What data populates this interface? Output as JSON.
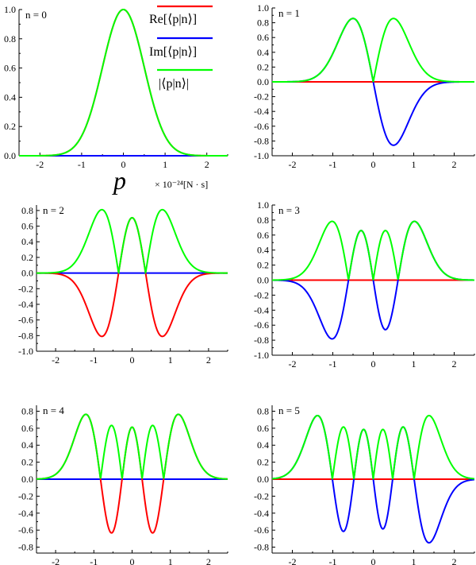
{
  "colors": {
    "re": "#ff0000",
    "im": "#0000ff",
    "abs": "#00ff00",
    "axis": "#000000"
  },
  "legend": {
    "entries": [
      {
        "label": "Re[⟨p|n⟩]",
        "color": "#ff0000"
      },
      {
        "label": "Im[⟨p|n⟩]",
        "color": "#0000ff"
      },
      {
        "label": "|⟨p|n⟩|",
        "color": "#00ff00"
      }
    ]
  },
  "xaxis": {
    "label": "p",
    "unit": "× 10⁻²⁴[N · s]"
  },
  "chart_data": [
    {
      "type": "line",
      "panel_label": "n = 0",
      "n": 0,
      "real_part": "re",
      "xlim": [
        -2.5,
        2.5
      ],
      "ylim": [
        0,
        1.0
      ],
      "x_ticks": [
        "-2",
        "-1",
        "0",
        "1",
        "2"
      ],
      "y_ticks": [
        "0.0",
        "0.2",
        "0.4",
        "0.6",
        "0.8",
        "1.0"
      ],
      "series": [
        {
          "name": "Re[⟨p|n⟩]",
          "color": "#ff0000"
        },
        {
          "name": "Im[⟨p|n⟩]",
          "color": "#0000ff"
        },
        {
          "name": "|⟨p|n⟩|",
          "color": "#00ff00"
        }
      ]
    },
    {
      "type": "line",
      "panel_label": "n = 1",
      "n": 1,
      "real_part": "im",
      "xlim": [
        -2.5,
        2.5
      ],
      "ylim": [
        -1.0,
        1.0
      ],
      "x_ticks": [
        "-2",
        "-1",
        "0",
        "1",
        "2"
      ],
      "y_ticks": [
        "-1.0",
        "-0.8",
        "-0.6",
        "-0.4",
        "-0.2",
        "0.0",
        "0.2",
        "0.4",
        "0.6",
        "0.8",
        "1.0"
      ],
      "series": [
        {
          "name": "Re[⟨p|n⟩]",
          "color": "#ff0000"
        },
        {
          "name": "Im[⟨p|n⟩]",
          "color": "#0000ff"
        },
        {
          "name": "|⟨p|n⟩|",
          "color": "#00ff00"
        }
      ]
    },
    {
      "type": "line",
      "panel_label": "n = 2",
      "n": 2,
      "real_part": "re",
      "xlim": [
        -2.5,
        2.5
      ],
      "ylim": [
        -1.0,
        0.87
      ],
      "x_ticks": [
        "-2",
        "-1",
        "0",
        "1",
        "2"
      ],
      "y_ticks": [
        "-1.0",
        "-0.8",
        "-0.6",
        "-0.4",
        "-0.2",
        "0.0",
        "0.2",
        "0.4",
        "0.6",
        "0.8"
      ],
      "series": [
        {
          "name": "Re[⟨p|n⟩]",
          "color": "#ff0000"
        },
        {
          "name": "Im[⟨p|n⟩]",
          "color": "#0000ff"
        },
        {
          "name": "|⟨p|n⟩|",
          "color": "#00ff00"
        }
      ]
    },
    {
      "type": "line",
      "panel_label": "n = 3",
      "n": 3,
      "real_part": "im",
      "xlim": [
        -2.5,
        2.5
      ],
      "ylim": [
        -1.0,
        1.0
      ],
      "x_ticks": [
        "-2",
        "-1",
        "0",
        "1",
        "2"
      ],
      "y_ticks": [
        "-1.0",
        "-0.8",
        "-0.6",
        "-0.4",
        "-0.2",
        "0.0",
        "0.2",
        "0.4",
        "0.6",
        "0.8",
        "1.0"
      ],
      "series": [
        {
          "name": "Re[⟨p|n⟩]",
          "color": "#ff0000"
        },
        {
          "name": "Im[⟨p|n⟩]",
          "color": "#0000ff"
        },
        {
          "name": "|⟨p|n⟩|",
          "color": "#00ff00"
        }
      ]
    },
    {
      "type": "line",
      "panel_label": "n = 4",
      "n": 4,
      "real_part": "re",
      "xlim": [
        -2.5,
        2.5
      ],
      "ylim": [
        -0.87,
        0.87
      ],
      "x_ticks": [
        "-2",
        "-1",
        "0",
        "1",
        "2"
      ],
      "y_ticks": [
        "-0.8",
        "-0.6",
        "-0.4",
        "-0.2",
        "0.0",
        "0.2",
        "0.4",
        "0.6",
        "0.8"
      ],
      "series": [
        {
          "name": "Re[⟨p|n⟩]",
          "color": "#ff0000"
        },
        {
          "name": "Im[⟨p|n⟩]",
          "color": "#0000ff"
        },
        {
          "name": "|⟨p|n⟩|",
          "color": "#00ff00"
        }
      ]
    },
    {
      "type": "line",
      "panel_label": "n = 5",
      "n": 5,
      "real_part": "im",
      "xlim": [
        -2.5,
        2.5
      ],
      "ylim": [
        -0.87,
        0.87
      ],
      "x_ticks": [
        "-2",
        "-1",
        "0",
        "1",
        "2"
      ],
      "y_ticks": [
        "-0.8",
        "-0.6",
        "-0.4",
        "-0.2",
        "0.0",
        "0.2",
        "0.4",
        "0.6",
        "0.8"
      ],
      "series": [
        {
          "name": "Re[⟨p|n⟩]",
          "color": "#ff0000"
        },
        {
          "name": "Im[⟨p|n⟩]",
          "color": "#0000ff"
        },
        {
          "name": "|⟨p|n⟩|",
          "color": "#00ff00"
        }
      ]
    }
  ]
}
